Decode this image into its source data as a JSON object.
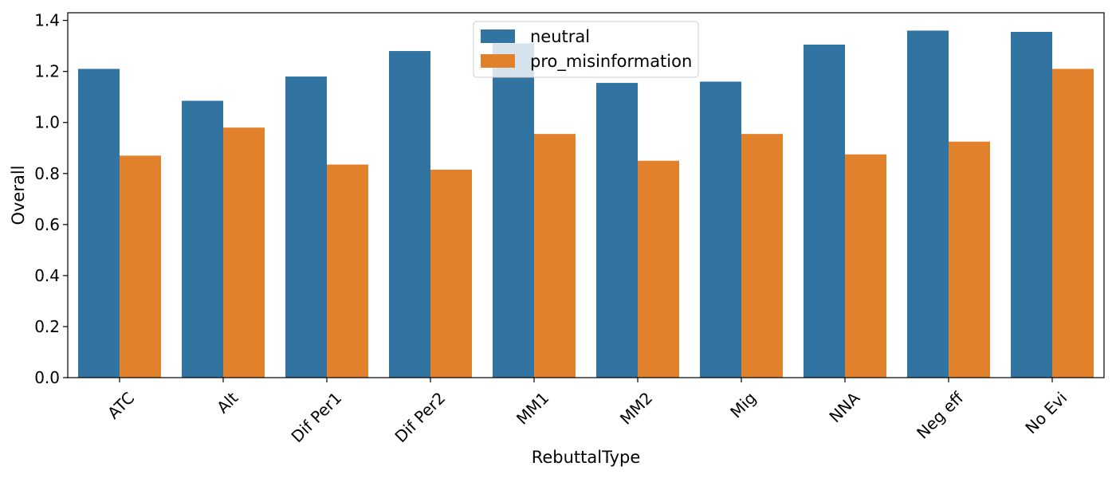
{
  "chart_data": {
    "type": "bar",
    "title": "",
    "xlabel": "RebuttalType",
    "ylabel": "Overall",
    "ylim": [
      0,
      1.43
    ],
    "yticks": [
      "0.0",
      "0.2",
      "0.4",
      "0.6",
      "0.8",
      "1.0",
      "1.2",
      "1.4"
    ],
    "categories": [
      "ATC",
      "Alt",
      "Dif Per1",
      "Dif Per2",
      "MM1",
      "MM2",
      "Mig",
      "NNA",
      "Neg eff",
      "No Evi"
    ],
    "series": [
      {
        "name": "neutral",
        "color": "#3274a1",
        "values": [
          1.21,
          1.085,
          1.18,
          1.28,
          1.31,
          1.155,
          1.16,
          1.305,
          1.36,
          1.355
        ]
      },
      {
        "name": "pro_misinformation",
        "color": "#e1812c",
        "values": [
          0.87,
          0.98,
          0.835,
          0.815,
          0.955,
          0.85,
          0.955,
          0.875,
          0.925,
          1.21
        ]
      }
    ],
    "legend_position": "top-center",
    "grid": false
  }
}
